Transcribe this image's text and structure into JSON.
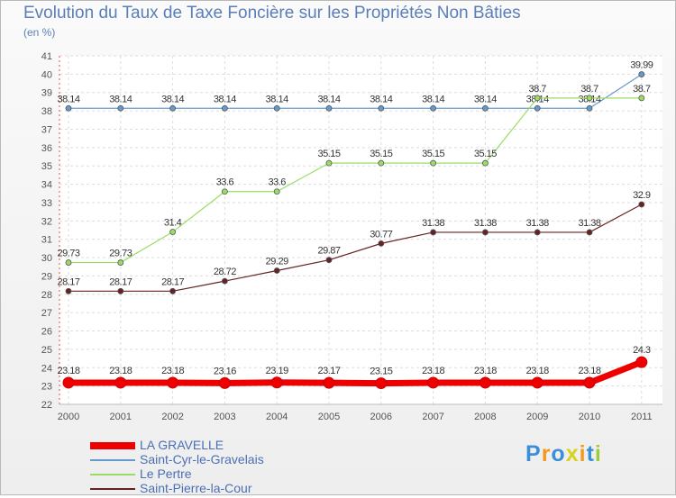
{
  "title": "Evolution du Taux de Taxe Foncière sur les Propriétés Non Bâties",
  "subtitle": "(en %)",
  "logo": {
    "p": "P",
    "r": "r",
    "o": "o",
    "x": "x",
    "i1": "i",
    "t": "t",
    "i2": "i"
  },
  "chart_data": {
    "type": "line",
    "x": [
      "2000",
      "2001",
      "2002",
      "2003",
      "2004",
      "2005",
      "2006",
      "2007",
      "2008",
      "2009",
      "2010",
      "2011"
    ],
    "ylim": [
      22,
      41
    ],
    "yticks": [
      22,
      23,
      24,
      25,
      26,
      27,
      28,
      29,
      30,
      31,
      32,
      33,
      34,
      35,
      36,
      37,
      38,
      39,
      40,
      41
    ],
    "grid": true,
    "legend_position": "bottom-left",
    "series": [
      {
        "name": "LA GRAVELLE",
        "color": "#ee0000",
        "width": 7,
        "markerRadius": 6,
        "values": [
          23.18,
          23.18,
          23.18,
          23.16,
          23.19,
          23.17,
          23.15,
          23.18,
          23.18,
          23.18,
          23.18,
          24.3
        ],
        "labels": [
          "23.18",
          "23.18",
          "23.18",
          "23.16",
          "23.19",
          "23.17",
          "23.15",
          "23.18",
          "23.18",
          "23.18",
          "23.18",
          "24.3"
        ]
      },
      {
        "name": "Saint-Cyr-le-Gravelais",
        "color": "#6699cc",
        "width": 1.2,
        "markerRadius": 3,
        "values": [
          38.14,
          38.14,
          38.14,
          38.14,
          38.14,
          38.14,
          38.14,
          38.14,
          38.14,
          38.14,
          38.14,
          39.99
        ],
        "labels": [
          "38.14",
          "38.14",
          "38.14",
          "38.14",
          "38.14",
          "38.14",
          "38.14",
          "38.14",
          "38.14",
          "38.14",
          "38.14",
          "39.99"
        ]
      },
      {
        "name": "Le Pertre",
        "color": "#99dd66",
        "width": 1.2,
        "markerRadius": 3,
        "values": [
          29.73,
          29.73,
          31.4,
          33.6,
          33.6,
          35.15,
          35.15,
          35.15,
          35.15,
          38.7,
          38.7,
          38.7
        ],
        "labels": [
          "29.73",
          "29.73",
          "31.4",
          "33.6",
          "33.6",
          "35.15",
          "35.15",
          "35.15",
          "35.15",
          "38.7",
          "38.7",
          "38.7"
        ]
      },
      {
        "name": "Saint-Pierre-la-Cour",
        "color": "#662222",
        "width": 1.2,
        "markerRadius": 3,
        "values": [
          28.17,
          28.17,
          28.17,
          28.72,
          29.29,
          29.87,
          30.77,
          31.38,
          31.38,
          31.38,
          31.38,
          32.9
        ],
        "labels": [
          "28.17",
          "28.17",
          "28.17",
          "28.72",
          "29.29",
          "29.87",
          "30.77",
          "31.38",
          "31.38",
          "31.38",
          "31.38",
          "32.9"
        ]
      }
    ]
  }
}
